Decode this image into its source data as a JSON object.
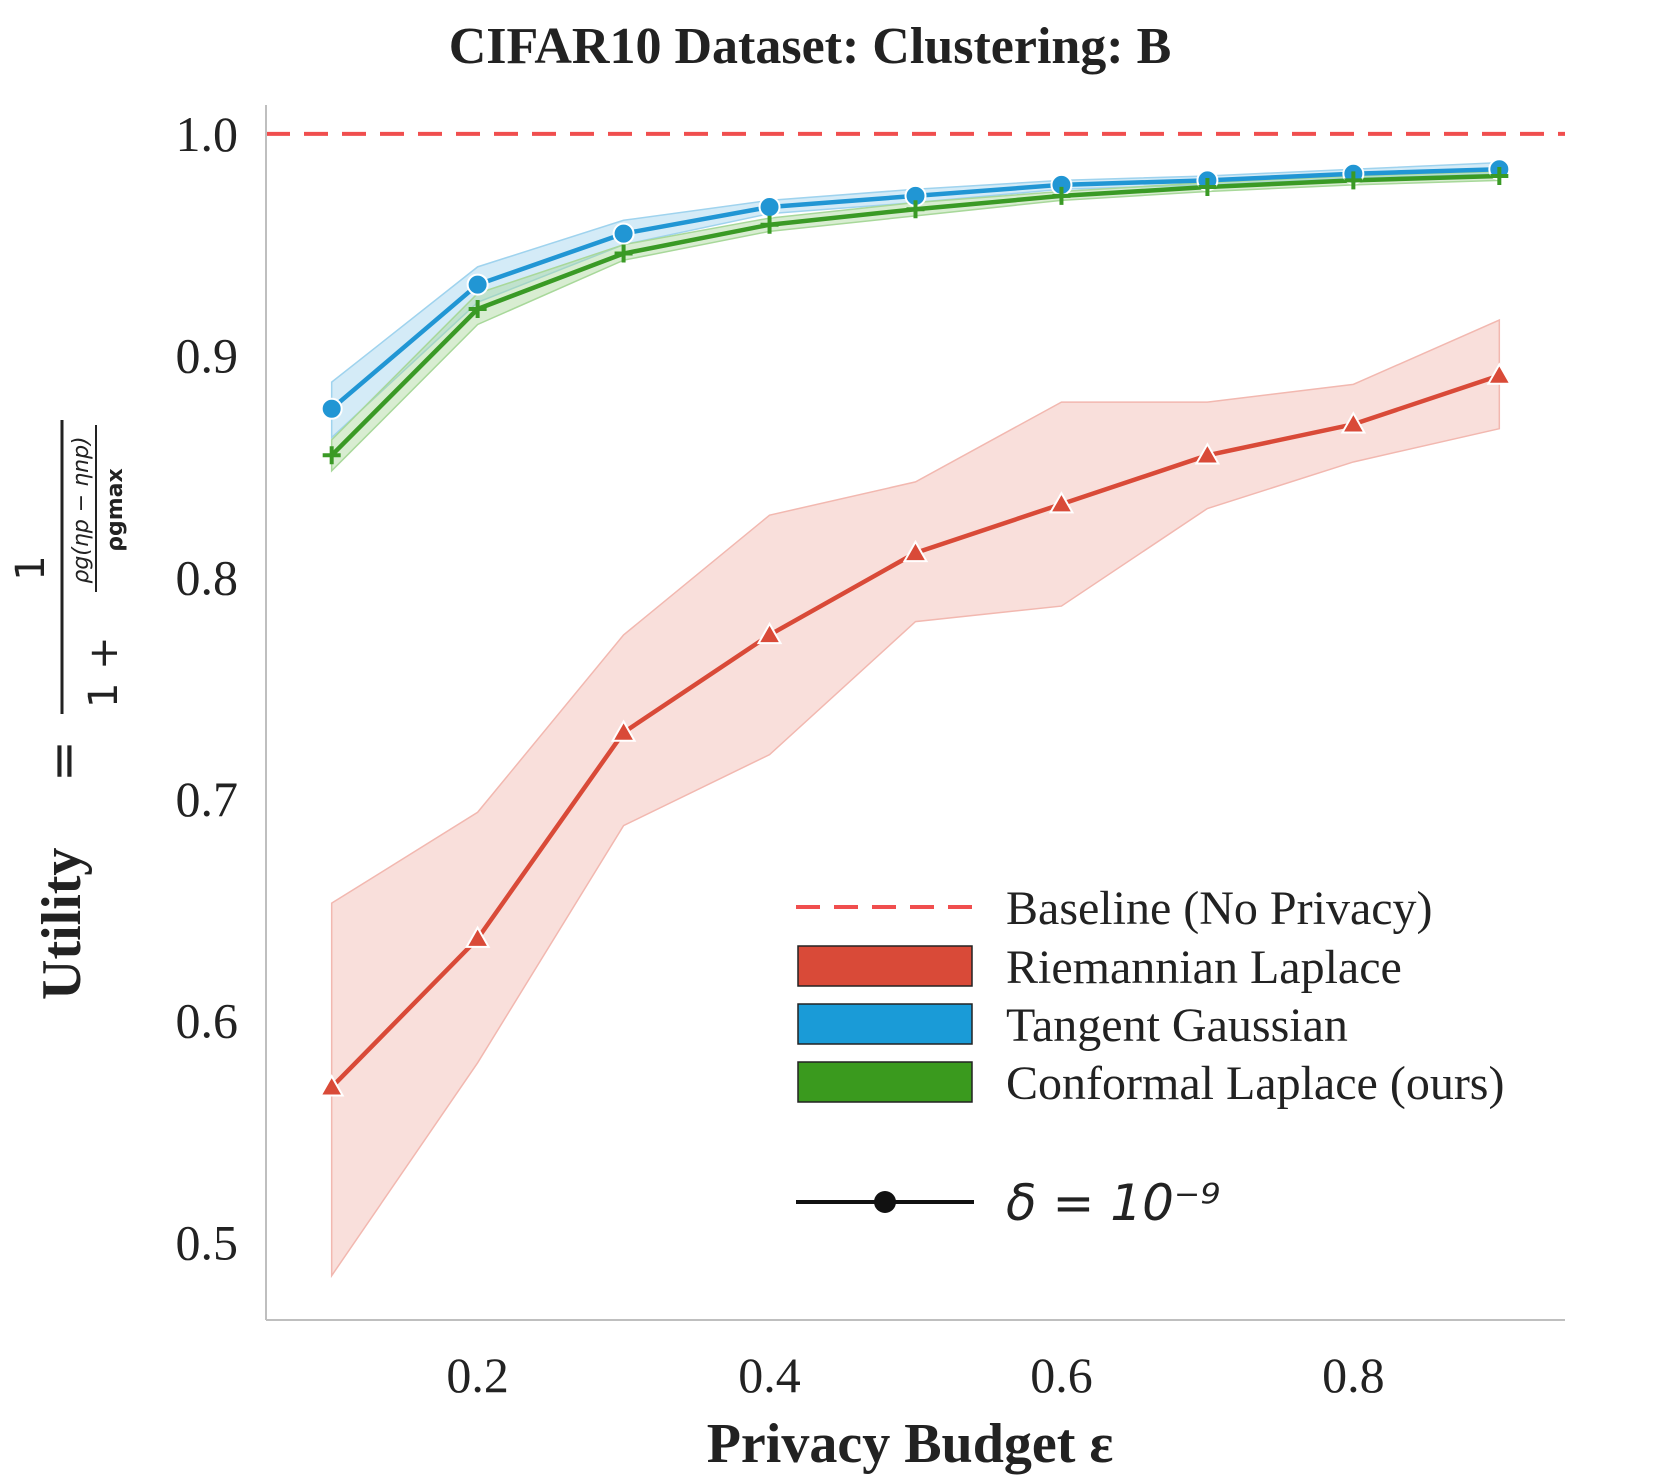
{
  "chart_data": {
    "type": "line",
    "title": "CIFAR10 Dataset: Clustering: B",
    "xlabel": "Privacy Budget ε",
    "ylabel": {
      "word": "Utility",
      "equals": "=",
      "numerator": "1",
      "denominator_prefix": "1 +",
      "inner_numerator": "ρg(ηp − ηnp)",
      "inner_denominator": "ρgmax"
    },
    "xlim": [
      0.055,
      0.945
    ],
    "ylim": [
      0.465,
      1.013
    ],
    "xticks": [
      0.2,
      0.4,
      0.6,
      0.8
    ],
    "xtick_labels": [
      "0.2",
      "0.4",
      "0.6",
      "0.8"
    ],
    "yticks": [
      0.5,
      0.6,
      0.7,
      0.8,
      0.9,
      1.0
    ],
    "ytick_labels": [
      "0.5",
      "0.6",
      "0.7",
      "0.8",
      "0.9",
      "1.0"
    ],
    "x": [
      0.1,
      0.2,
      0.3,
      0.4,
      0.5,
      0.6,
      0.7,
      0.8,
      0.9
    ],
    "baseline": {
      "name": "Baseline (No Privacy)",
      "value": 1.0,
      "color": "#f04e4e"
    },
    "series": [
      {
        "name": "Riemannian Laplace",
        "color": "#d94a38",
        "band_color": "#f2b8b0",
        "marker": "triangle",
        "values": [
          0.57,
          0.637,
          0.73,
          0.774,
          0.811,
          0.833,
          0.855,
          0.869,
          0.891
        ],
        "lower": [
          0.485,
          0.581,
          0.688,
          0.72,
          0.78,
          0.787,
          0.831,
          0.852,
          0.867
        ],
        "upper": [
          0.653,
          0.694,
          0.774,
          0.828,
          0.843,
          0.879,
          0.879,
          0.887,
          0.916
        ]
      },
      {
        "name": "Tangent Gaussian",
        "color": "#2196d4",
        "band_color": "#9fd3ee",
        "marker": "circle",
        "values": [
          0.876,
          0.932,
          0.955,
          0.967,
          0.972,
          0.977,
          0.979,
          0.982,
          0.984
        ],
        "lower": [
          0.863,
          0.924,
          0.95,
          0.964,
          0.969,
          0.975,
          0.977,
          0.98,
          0.982
        ],
        "upper": [
          0.888,
          0.94,
          0.961,
          0.97,
          0.975,
          0.979,
          0.981,
          0.984,
          0.987
        ]
      },
      {
        "name": "Conformal Laplace (ours)",
        "color": "#3a9a25",
        "band_color": "#a8d89a",
        "marker": "plus",
        "values": [
          0.855,
          0.921,
          0.946,
          0.959,
          0.966,
          0.972,
          0.976,
          0.979,
          0.981
        ],
        "lower": [
          0.848,
          0.914,
          0.943,
          0.956,
          0.963,
          0.97,
          0.974,
          0.977,
          0.979
        ],
        "upper": [
          0.862,
          0.928,
          0.95,
          0.962,
          0.969,
          0.974,
          0.978,
          0.981,
          0.983
        ]
      }
    ],
    "legend": {
      "location": "lower-right",
      "entries": [
        "Baseline (No Privacy)",
        "Riemannian Laplace",
        "Tangent Gaussian",
        "Conformal Laplace (ours)"
      ],
      "style_entry": "δ = 10⁻⁹"
    }
  }
}
